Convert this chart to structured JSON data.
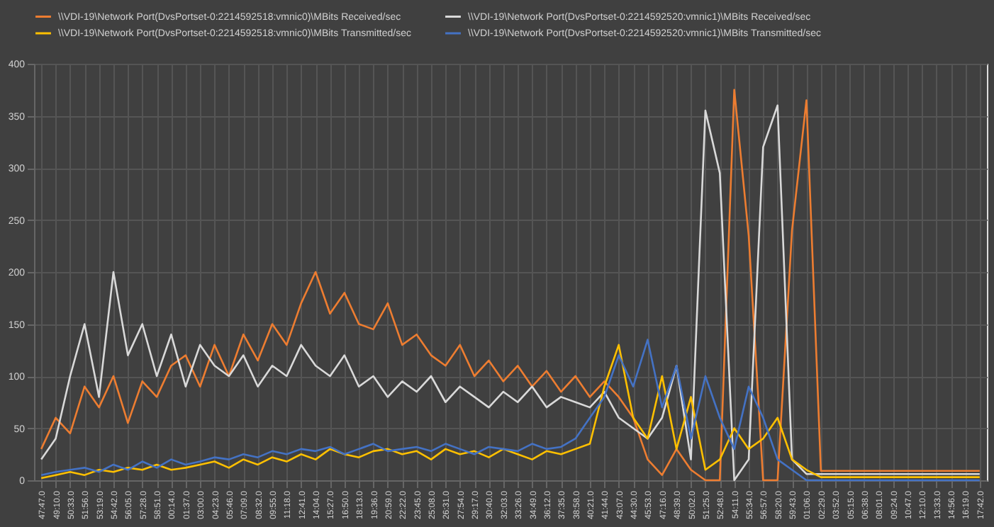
{
  "chart_data": {
    "type": "line",
    "categories": [
      "47:47.0",
      "49:10.0",
      "50:33.0",
      "51:56.0",
      "53:19.0",
      "54:42.0",
      "56:05.0",
      "57:28.0",
      "58:51.0",
      "00:14.0",
      "01:37.0",
      "03:00.0",
      "04:23.0",
      "05:46.0",
      "07:09.0",
      "08:32.0",
      "09:55.0",
      "11:18.0",
      "12:41.0",
      "14:04.0",
      "15:27.0",
      "16:50.0",
      "18:13.0",
      "19:36.0",
      "20:59.0",
      "22:22.0",
      "23:45.0",
      "25:08.0",
      "26:31.0",
      "27:54.0",
      "29:17.0",
      "30:40.0",
      "32:03.0",
      "33:26.0",
      "34:49.0",
      "36:12.0",
      "37:35.0",
      "38:58.0",
      "40:21.0",
      "41:44.0",
      "43:07.0",
      "44:30.0",
      "45:53.0",
      "47:16.0",
      "48:39.0",
      "50:02.0",
      "51:25.0",
      "52:48.0",
      "54:11.0",
      "55:34.0",
      "56:57.0",
      "58:20.0",
      "59:43.0",
      "01:06.0",
      "02:29.0",
      "03:52.0",
      "05:15.0",
      "06:38.0",
      "08:01.0",
      "09:24.0",
      "10:47.0",
      "12:10.0",
      "13:33.0",
      "14:56.0",
      "16:19.0",
      "17:42.0"
    ],
    "series": [
      {
        "name": "\\\\VDI-19\\Network Port(DvsPortset-0:2214592518:vmnic0)\\MBits Received/sec",
        "color": "#ed7d31",
        "values": [
          30,
          60,
          45,
          90,
          70,
          100,
          55,
          95,
          80,
          110,
          120,
          90,
          130,
          100,
          140,
          115,
          150,
          130,
          170,
          200,
          160,
          180,
          150,
          145,
          170,
          130,
          140,
          120,
          110,
          130,
          100,
          115,
          95,
          110,
          90,
          105,
          85,
          100,
          80,
          95,
          80,
          60,
          20,
          5,
          30,
          10,
          0,
          0,
          375,
          235,
          0,
          0,
          240,
          365,
          9,
          9,
          9,
          9,
          9,
          9,
          9,
          9,
          9,
          9,
          9,
          9
        ]
      },
      {
        "name": "\\\\VDI-19\\Network Port(DvsPortset-0:2214592520:vmnic1)\\MBits Received/sec",
        "color": "#d9d9d9",
        "values": [
          20,
          40,
          100,
          150,
          80,
          200,
          120,
          150,
          100,
          140,
          90,
          130,
          110,
          100,
          120,
          90,
          110,
          100,
          130,
          110,
          100,
          120,
          90,
          100,
          80,
          95,
          85,
          100,
          75,
          90,
          80,
          70,
          85,
          75,
          90,
          70,
          80,
          75,
          70,
          85,
          60,
          50,
          40,
          60,
          110,
          20,
          355,
          295,
          0,
          20,
          320,
          360,
          20,
          6,
          6,
          6,
          6,
          6,
          6,
          6,
          6,
          6,
          6,
          6,
          6,
          6
        ]
      },
      {
        "name": "\\\\VDI-19\\Network Port(DvsPortset-0:2214592518:vmnic0)\\MBits Transmitted/sec",
        "color": "#ffc000",
        "values": [
          2,
          5,
          8,
          5,
          10,
          8,
          12,
          10,
          15,
          10,
          12,
          15,
          18,
          12,
          20,
          15,
          22,
          18,
          25,
          20,
          30,
          25,
          22,
          28,
          30,
          25,
          28,
          20,
          30,
          25,
          28,
          22,
          30,
          25,
          20,
          28,
          25,
          30,
          35,
          90,
          130,
          60,
          40,
          100,
          30,
          80,
          10,
          20,
          50,
          30,
          40,
          60,
          20,
          10,
          3,
          3,
          3,
          3,
          3,
          3,
          3,
          3,
          3,
          3,
          3,
          3
        ]
      },
      {
        "name": "\\\\VDI-19\\Network Port(DvsPortset-0:2214592520:vmnic1)\\MBits Transmitted/sec",
        "color": "#4472c4",
        "values": [
          5,
          8,
          10,
          12,
          8,
          15,
          10,
          18,
          12,
          20,
          15,
          18,
          22,
          20,
          25,
          22,
          28,
          25,
          30,
          28,
          32,
          25,
          30,
          35,
          28,
          30,
          32,
          28,
          35,
          30,
          25,
          32,
          30,
          28,
          35,
          30,
          32,
          40,
          60,
          80,
          120,
          90,
          135,
          70,
          110,
          40,
          100,
          60,
          30,
          90,
          60,
          20,
          10,
          0,
          0,
          0,
          0,
          0,
          0,
          0,
          0,
          0,
          0,
          0,
          0,
          0
        ]
      }
    ],
    "ylim": [
      0,
      400
    ],
    "yticks": [
      0,
      50,
      100,
      150,
      200,
      250,
      300,
      350,
      400
    ],
    "grid": true,
    "legend": "top",
    "marker": "none",
    "line_style": "solid"
  }
}
